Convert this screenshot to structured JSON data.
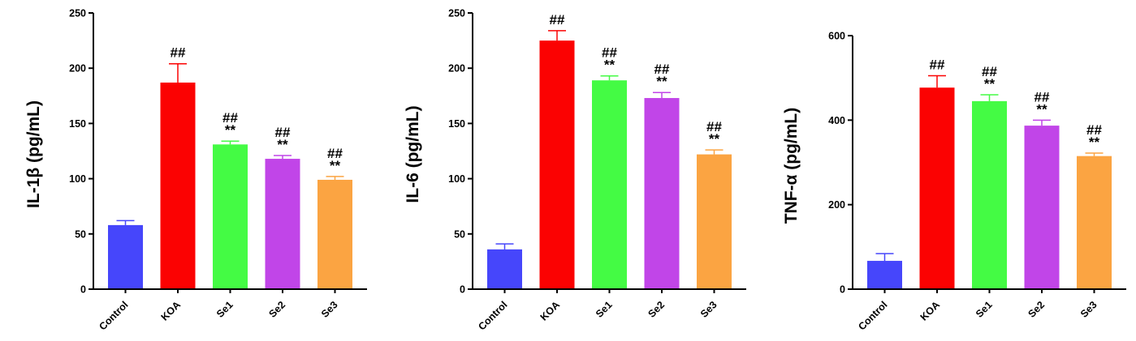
{
  "chart_data": [
    {
      "type": "bar",
      "ylabel": "IL-1β (pg/mL)",
      "ylim": [
        0,
        250
      ],
      "yticks": [
        "0",
        "50",
        "100",
        "150",
        "200",
        "250"
      ],
      "categories": [
        "Control",
        "KOA",
        "Se1",
        "Se2",
        "Se3"
      ],
      "values": [
        58,
        187,
        131,
        118,
        99
      ],
      "errors": [
        4,
        17,
        3,
        3,
        3
      ],
      "annotations": [
        [],
        [
          "##"
        ],
        [
          "##",
          "**"
        ],
        [
          "##",
          "**"
        ],
        [
          "##",
          "**"
        ]
      ]
    },
    {
      "type": "bar",
      "ylabel": "IL-6 (pg/mL)",
      "ylim": [
        0,
        250
      ],
      "yticks": [
        "0",
        "50",
        "100",
        "150",
        "200",
        "250"
      ],
      "categories": [
        "Control",
        "KOA",
        "Se1",
        "Se2",
        "Se3"
      ],
      "values": [
        36,
        225,
        189,
        173,
        122
      ],
      "errors": [
        5,
        9,
        4,
        5,
        4
      ],
      "annotations": [
        [],
        [
          "##"
        ],
        [
          "##",
          "**"
        ],
        [
          "##",
          "**"
        ],
        [
          "##",
          "**"
        ]
      ]
    },
    {
      "type": "bar",
      "ylabel": "TNF-α (pg/mL)",
      "ylim": [
        0,
        600
      ],
      "yticks": [
        "0",
        "200",
        "400",
        "600"
      ],
      "categories": [
        "Control",
        "KOA",
        "Se1",
        "Se2",
        "Se3"
      ],
      "values": [
        67,
        477,
        445,
        387,
        315
      ],
      "errors": [
        17,
        28,
        15,
        13,
        7
      ],
      "annotations": [
        [],
        [
          "##"
        ],
        [
          "##",
          "**"
        ],
        [
          "##",
          "**"
        ],
        [
          "##",
          "**"
        ]
      ]
    }
  ],
  "colors": {
    "Control": "#4646fb",
    "KOA": "#fb0202",
    "Se1": "#44fb44",
    "Se2": "#c145e8",
    "Se3": "#fba442",
    "axis": "#000000"
  }
}
